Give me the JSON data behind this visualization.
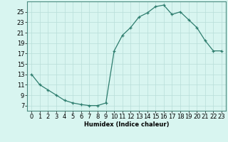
{
  "x": [
    0,
    1,
    2,
    3,
    4,
    5,
    6,
    7,
    8,
    9,
    10,
    11,
    12,
    13,
    14,
    15,
    16,
    17,
    18,
    19,
    20,
    21,
    22,
    23
  ],
  "y": [
    13,
    11,
    10,
    9,
    8,
    7.5,
    7.2,
    7,
    7,
    7.5,
    17.5,
    20.5,
    22,
    24,
    24.8,
    26,
    26.3,
    24.5,
    25,
    23.5,
    22,
    19.5,
    17.5,
    17.5
  ],
  "line_color": "#2e7d6e",
  "marker": "+",
  "marker_size": 3,
  "bg_color": "#d8f5f0",
  "grid_color": "#b8ddd8",
  "xlabel": "Humidex (Indice chaleur)",
  "xlabel_fontsize": 6,
  "tick_fontsize": 6,
  "xlim": [
    -0.5,
    23.5
  ],
  "ylim": [
    6,
    27
  ],
  "yticks": [
    7,
    9,
    11,
    13,
    15,
    17,
    19,
    21,
    23,
    25
  ],
  "xticks": [
    0,
    1,
    2,
    3,
    4,
    5,
    6,
    7,
    8,
    9,
    10,
    11,
    12,
    13,
    14,
    15,
    16,
    17,
    18,
    19,
    20,
    21,
    22,
    23
  ],
  "line_width": 0.9,
  "marker_edge_width": 0.9
}
